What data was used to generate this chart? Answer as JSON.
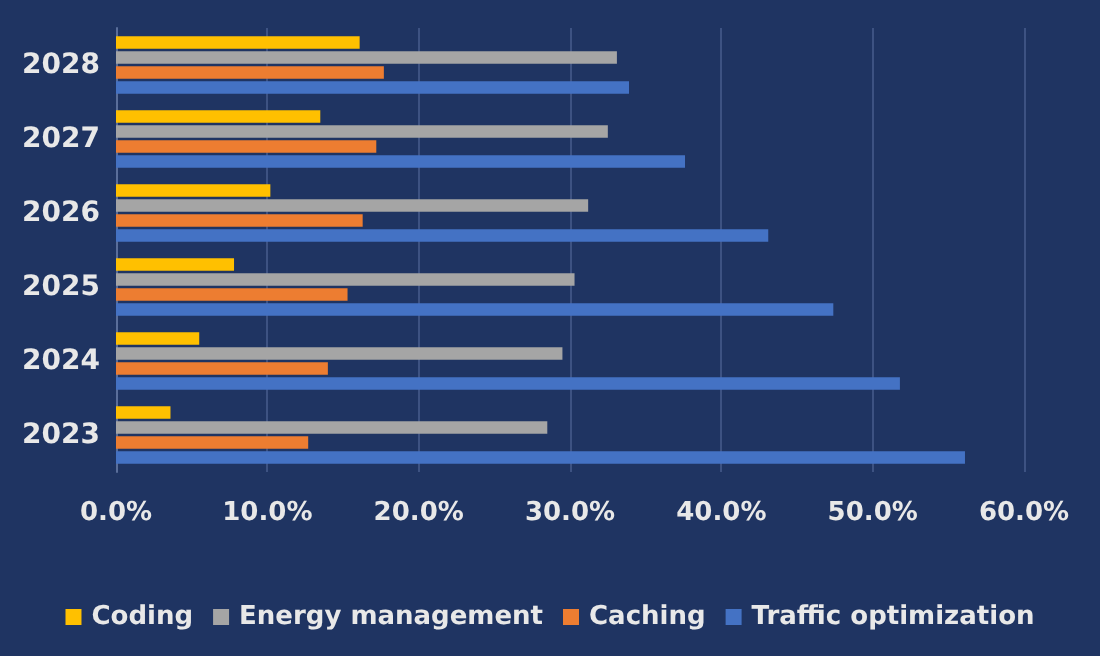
{
  "chart_data": {
    "type": "bar",
    "orientation": "horizontal",
    "categories": [
      "2028",
      "2027",
      "2026",
      "2025",
      "2024",
      "2023"
    ],
    "series": [
      {
        "name": "Coding",
        "color": "#ffc000",
        "values": [
          16.1,
          13.5,
          10.2,
          7.8,
          5.5,
          3.6
        ]
      },
      {
        "name": "Energy management",
        "color": "#a5a5a5",
        "values": [
          33.1,
          32.5,
          31.2,
          30.3,
          29.5,
          28.5
        ]
      },
      {
        "name": "Caching",
        "color": "#ed7d31",
        "values": [
          17.7,
          17.2,
          16.3,
          15.3,
          14.0,
          12.7
        ]
      },
      {
        "name": "Traffic optimization",
        "color": "#4472c4",
        "values": [
          33.9,
          37.6,
          43.1,
          47.4,
          51.8,
          56.1
        ]
      }
    ],
    "xlim": [
      0,
      60
    ],
    "xticks": [
      {
        "value": 0,
        "label": "0.0%"
      },
      {
        "value": 10,
        "label": "10.0%"
      },
      {
        "value": 20,
        "label": "20.0%"
      },
      {
        "value": 30,
        "label": "30.0%"
      },
      {
        "value": 40,
        "label": "40.0%"
      },
      {
        "value": 50,
        "label": "50.0%"
      },
      {
        "value": 60,
        "label": "60.0%"
      }
    ],
    "grid": "x",
    "legend": "bottom"
  }
}
